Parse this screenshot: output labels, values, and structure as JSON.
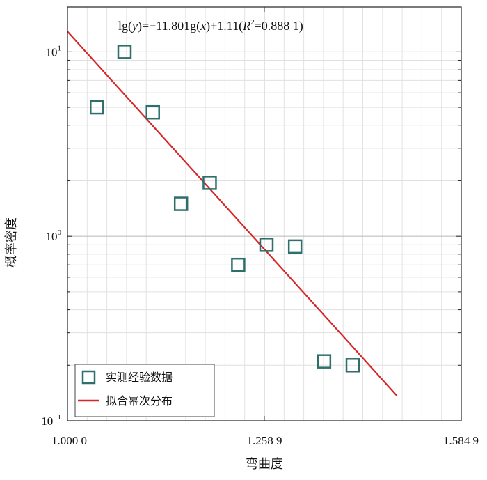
{
  "chart_data": {
    "type": "scatter",
    "x_scale": "log",
    "y_scale": "log",
    "xlabel": "弯曲度",
    "ylabel": "概率密度",
    "xlim": [
      1.0,
      1.5849
    ],
    "ylim": [
      0.1,
      17.5
    ],
    "x_ticks": [
      {
        "value": 1.0,
        "label": "1.000 0"
      },
      {
        "value": 1.2589,
        "label": "1.258 9"
      },
      {
        "value": 1.5849,
        "label": "1.584 9"
      }
    ],
    "y_ticks": [
      {
        "value": 0.1,
        "base": "10",
        "exp": "−1"
      },
      {
        "value": 1,
        "base": "10",
        "exp": "0"
      },
      {
        "value": 10,
        "base": "10",
        "exp": "1"
      }
    ],
    "grid": true,
    "legend_position": "bottom-left",
    "annotation": {
      "prefix": "lg(",
      "var_y": "y",
      "mid": ")=−11.801g(",
      "var_x": "x",
      "mid2": ")+1.11(",
      "var_r": "R",
      "sup": "2",
      "suffix": "=0.888 1)"
    },
    "series": [
      {
        "name": "实测经验数据",
        "kind": "scatter",
        "marker": "square",
        "color": "#2e6f6b",
        "points": [
          {
            "x": 1.035,
            "y": 5.0
          },
          {
            "x": 1.069,
            "y": 10.0
          },
          {
            "x": 1.105,
            "y": 4.7
          },
          {
            "x": 1.142,
            "y": 1.5
          },
          {
            "x": 1.181,
            "y": 1.95
          },
          {
            "x": 1.221,
            "y": 0.7
          },
          {
            "x": 1.262,
            "y": 0.9
          },
          {
            "x": 1.305,
            "y": 0.88
          },
          {
            "x": 1.35,
            "y": 0.21
          },
          {
            "x": 1.396,
            "y": 0.2
          }
        ]
      },
      {
        "name": "拟合幂次分布",
        "kind": "line",
        "color": "#d62728",
        "slope": -11.8,
        "intercept": 1.11,
        "x_range": [
          1.0,
          1.47
        ]
      }
    ]
  }
}
